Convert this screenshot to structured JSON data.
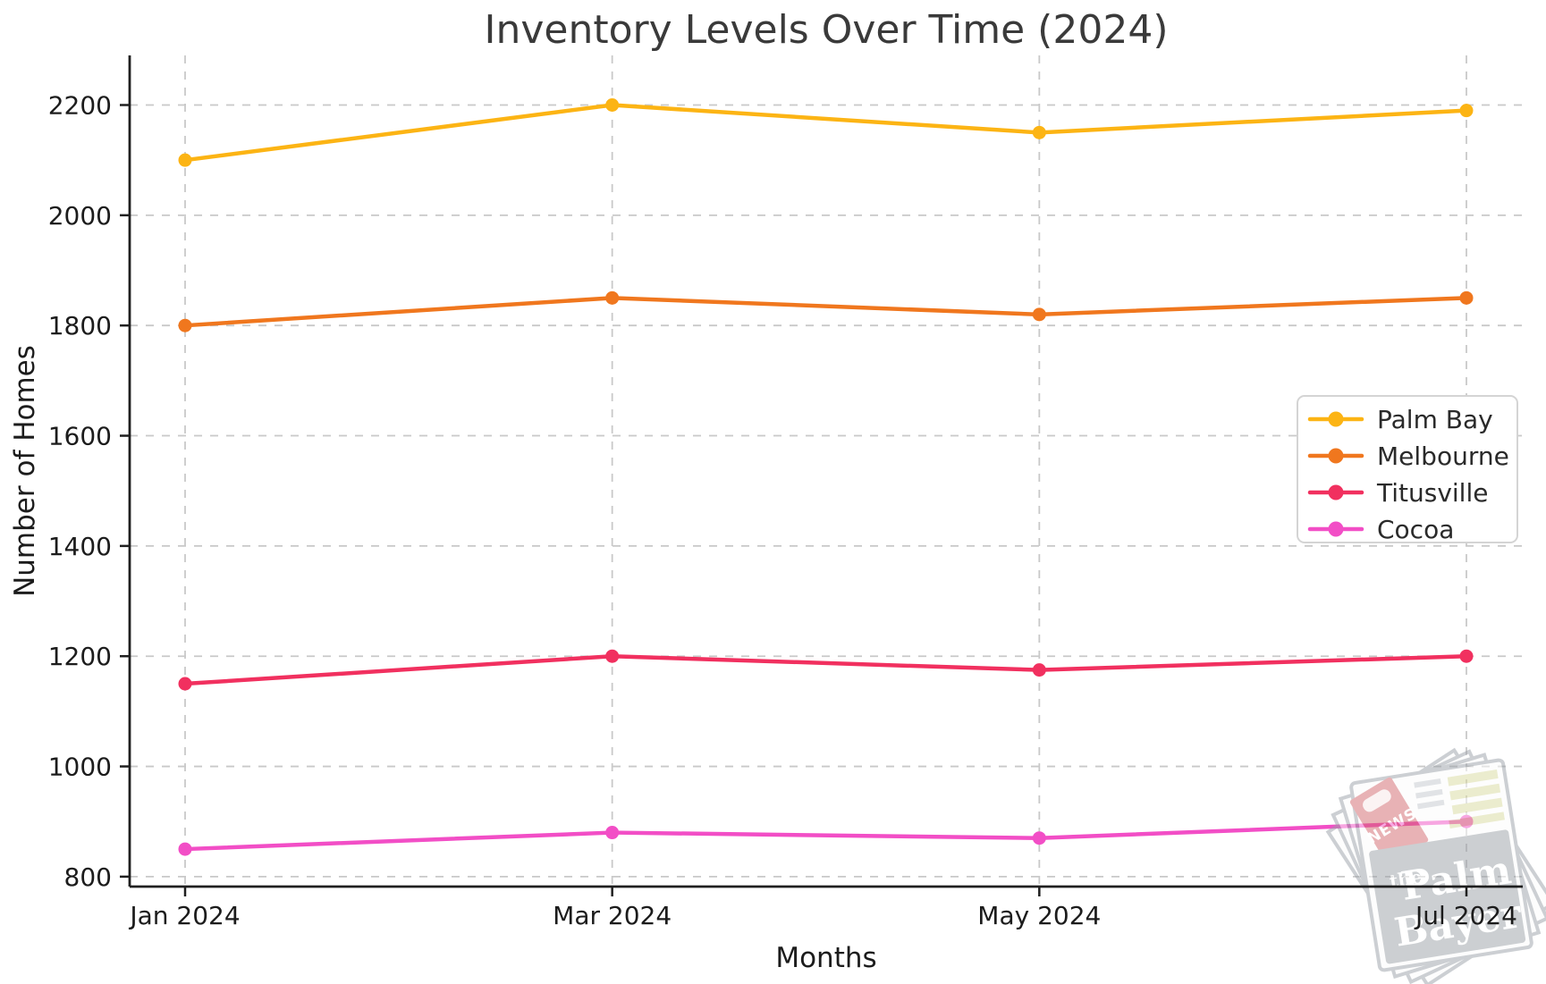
{
  "chart_data": {
    "type": "line",
    "title": "Inventory Levels Over Time (2024)",
    "xlabel": "Months",
    "ylabel": "Number of Homes",
    "categories": [
      "Jan 2024",
      "Mar 2024",
      "May 2024",
      "Jul 2024"
    ],
    "series": [
      {
        "name": "Palm Bay",
        "color": "#FCB414",
        "values": [
          2100,
          2200,
          2150,
          2190
        ]
      },
      {
        "name": "Melbourne",
        "color": "#F0771E",
        "values": [
          1800,
          1850,
          1820,
          1850
        ]
      },
      {
        "name": "Titusville",
        "color": "#F1305F",
        "values": [
          1150,
          1200,
          1175,
          1200
        ]
      },
      {
        "name": "Cocoa",
        "color": "#F24EC6",
        "values": [
          850,
          880,
          870,
          900
        ]
      }
    ],
    "yticks": [
      800,
      1000,
      1200,
      1400,
      1600,
      1800,
      2000,
      2200
    ],
    "ylim": [
      782,
      2290
    ],
    "grid": {
      "visible": true,
      "style": "dashed",
      "color": "#c9c9c9"
    },
    "legend": {
      "position": "center-right",
      "labels": [
        "Palm Bay",
        "Melbourne",
        "Titusville",
        "Cocoa"
      ]
    },
    "marker": "circle"
  },
  "text_colors": {
    "title": "#3a3a3a",
    "ticks": "#1c1c1c",
    "axis_labels": "#1c1c1c",
    "legend_text": "#2a2a2a"
  },
  "axis_colors": {
    "spine": "#1f1f1f",
    "legend_border": "#d4d4d4"
  },
  "watermark": {
    "tag_text": "NEWS",
    "masthead_the": "the",
    "masthead_line1": "Palm",
    "masthead_line2": "Bayer",
    "colors": {
      "page": "#fdfdfd",
      "outline": "#9aa1a8",
      "body": "#9aa0a6",
      "tag": "#d2686e",
      "bars": "#d9da9e",
      "lines": "#c4c9ce"
    }
  }
}
